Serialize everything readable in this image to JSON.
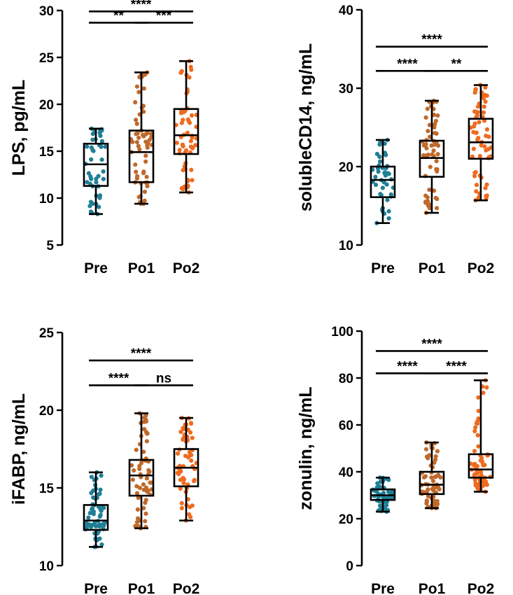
{
  "colors": {
    "Pre": "#1f7f95",
    "Po1": "#c0692a",
    "Po2": "#ef6b1f"
  },
  "chart_data": [
    {
      "type": "box",
      "id": "lps",
      "ylabel": "LPS, pg/mL",
      "ylim": [
        5,
        30
      ],
      "yticks": [
        5,
        10,
        15,
        20,
        25,
        30
      ],
      "categories": [
        "Pre",
        "Po1",
        "Po2"
      ],
      "boxes": [
        {
          "name": "Pre",
          "min": 8.3,
          "q1": 11.3,
          "median": 13.6,
          "q3": 15.8,
          "max": 17.4,
          "n": 45
        },
        {
          "name": "Po1",
          "min": 9.4,
          "q1": 11.7,
          "median": 14.9,
          "q3": 17.2,
          "max": 23.4,
          "n": 60
        },
        {
          "name": "Po2",
          "min": 10.6,
          "q1": 14.7,
          "median": 16.7,
          "q3": 19.5,
          "max": 24.6,
          "n": 58
        }
      ],
      "comparisons": [
        {
          "from": "Pre",
          "to": "Po2",
          "label": "****",
          "level": 2
        },
        {
          "from": "Pre",
          "to": "Po1",
          "label": "**",
          "level": 1
        },
        {
          "from": "Po1",
          "to": "Po2",
          "label": "***",
          "level": 1
        }
      ],
      "sig_y": [
        28.7,
        29.9
      ]
    },
    {
      "type": "box",
      "id": "scd14",
      "ylabel": "solubleCD14, ng/mL",
      "ylim": [
        10,
        40
      ],
      "yticks": [
        10,
        20,
        30,
        40
      ],
      "categories": [
        "Pre",
        "Po1",
        "Po2"
      ],
      "boxes": [
        {
          "name": "Pre",
          "min": 12.8,
          "q1": 16.1,
          "median": 18.3,
          "q3": 20.0,
          "max": 23.4,
          "n": 42
        },
        {
          "name": "Po1",
          "min": 14.1,
          "q1": 18.7,
          "median": 21.1,
          "q3": 23.3,
          "max": 28.4,
          "n": 60
        },
        {
          "name": "Po2",
          "min": 15.7,
          "q1": 21.0,
          "median": 23.1,
          "q3": 26.1,
          "max": 30.4,
          "n": 62
        }
      ],
      "comparisons": [
        {
          "from": "Pre",
          "to": "Po2",
          "label": "****",
          "level": 2
        },
        {
          "from": "Pre",
          "to": "Po1",
          "label": "****",
          "level": 1
        },
        {
          "from": "Po1",
          "to": "Po2",
          "label": "**",
          "level": 1
        }
      ],
      "sig_y": [
        32.2,
        35.3
      ]
    },
    {
      "type": "box",
      "id": "ifabp",
      "ylabel": "iFABP, ng/mL",
      "ylim": [
        10,
        25
      ],
      "yticks": [
        10,
        15,
        20,
        25
      ],
      "categories": [
        "Pre",
        "Po1",
        "Po2"
      ],
      "boxes": [
        {
          "name": "Pre",
          "min": 11.2,
          "q1": 12.3,
          "median": 12.9,
          "q3": 13.9,
          "max": 16.0,
          "n": 60
        },
        {
          "name": "Po1",
          "min": 12.4,
          "q1": 14.5,
          "median": 15.8,
          "q3": 16.8,
          "max": 19.8,
          "n": 62
        },
        {
          "name": "Po2",
          "min": 12.9,
          "q1": 15.1,
          "median": 16.3,
          "q3": 17.5,
          "max": 19.5,
          "n": 60
        }
      ],
      "comparisons": [
        {
          "from": "Pre",
          "to": "Po2",
          "label": "****",
          "level": 2
        },
        {
          "from": "Pre",
          "to": "Po1",
          "label": "****",
          "level": 1
        },
        {
          "from": "Po1",
          "to": "Po2",
          "label": "ns",
          "level": 1
        }
      ],
      "sig_y": [
        21.6,
        23.2
      ]
    },
    {
      "type": "box",
      "id": "zonulin",
      "ylabel": "zonulin, ng/mL",
      "ylim": [
        0,
        100
      ],
      "yticks": [
        0,
        20,
        40,
        60,
        80,
        100
      ],
      "categories": [
        "Pre",
        "Po1",
        "Po2"
      ],
      "boxes": [
        {
          "name": "Pre",
          "min": 23.0,
          "q1": 28.0,
          "median": 30.0,
          "q3": 32.5,
          "max": 37.5,
          "n": 55
        },
        {
          "name": "Po1",
          "min": 24.5,
          "q1": 30.5,
          "median": 34.5,
          "q3": 40.0,
          "max": 52.5,
          "n": 62
        },
        {
          "name": "Po2",
          "min": 31.5,
          "q1": 37.5,
          "median": 41.0,
          "q3": 47.5,
          "max": 79.0,
          "n": 62
        }
      ],
      "comparisons": [
        {
          "from": "Pre",
          "to": "Po2",
          "label": "****",
          "level": 2
        },
        {
          "from": "Pre",
          "to": "Po1",
          "label": "****",
          "level": 1
        },
        {
          "from": "Po1",
          "to": "Po2",
          "label": "****",
          "level": 1
        }
      ],
      "sig_y": [
        82.0,
        91.5
      ]
    }
  ]
}
